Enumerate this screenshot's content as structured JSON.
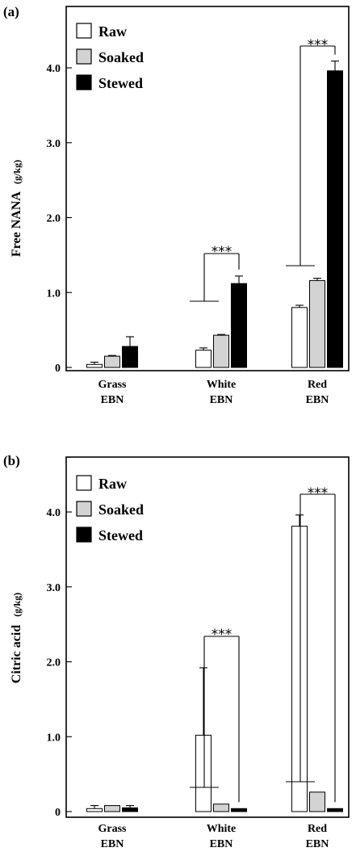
{
  "chart_data": [
    {
      "type": "bar",
      "panel_label": "(a)",
      "ylabel": "Free NANA",
      "ylabel_unit": "(g/kg)",
      "ylim": [
        0,
        4.0
      ],
      "yticks": [
        {
          "value": 0,
          "label": "0"
        },
        {
          "value": 1.0,
          "label": "1.0"
        },
        {
          "value": 2.0,
          "label": "2.0"
        },
        {
          "value": 3.0,
          "label": "3.0"
        },
        {
          "value": 4.0,
          "label": "4.0"
        }
      ],
      "categories": [
        {
          "line1": "Grass",
          "line2": "EBN"
        },
        {
          "line1": "White",
          "line2": "EBN"
        },
        {
          "line1": "Red",
          "line2": "EBN"
        }
      ],
      "series": [
        {
          "name": "Raw",
          "color": "#ffffff",
          "values": [
            0.04,
            0.23,
            0.8
          ],
          "errors": [
            0.03,
            0.03,
            0.03
          ]
        },
        {
          "name": "Soaked",
          "color": "#d3d3d3",
          "values": [
            0.15,
            0.43,
            1.16
          ],
          "errors": [
            0.01,
            0.01,
            0.03
          ]
        },
        {
          "name": "Stewed",
          "color": "#000000",
          "values": [
            0.28,
            1.12,
            3.96
          ],
          "errors": [
            0.13,
            0.1,
            0.13
          ]
        }
      ],
      "legend_position": "top-left",
      "annotations": [
        {
          "category": 1,
          "text": "***"
        },
        {
          "category": 2,
          "text": "***"
        }
      ]
    },
    {
      "type": "bar",
      "panel_label": "(b)",
      "ylabel": "Citric acid",
      "ylabel_unit": "(g/kg)",
      "ylim": [
        0,
        4.0
      ],
      "yticks": [
        {
          "value": 0,
          "label": "0"
        },
        {
          "value": 1.0,
          "label": "1.0"
        },
        {
          "value": 2.0,
          "label": "2.0"
        },
        {
          "value": 3.0,
          "label": "3.0"
        },
        {
          "value": 4.0,
          "label": "4.0"
        }
      ],
      "categories": [
        {
          "line1": "Grass",
          "line2": "EBN"
        },
        {
          "line1": "White",
          "line2": "EBN"
        },
        {
          "line1": "Red",
          "line2": "EBN"
        }
      ],
      "series": [
        {
          "name": "Raw",
          "color": "#ffffff",
          "values": [
            0.04,
            1.02,
            3.81
          ],
          "errors": [
            0.04,
            0.9,
            0.15
          ]
        },
        {
          "name": "Soaked",
          "color": "#d3d3d3",
          "values": [
            0.08,
            0.1,
            0.26
          ],
          "errors": [
            0.0,
            0.0,
            0.0
          ]
        },
        {
          "name": "Stewed",
          "color": "#000000",
          "values": [
            0.05,
            0.04,
            0.04
          ],
          "errors": [
            0.03,
            0.0,
            0.0
          ]
        }
      ],
      "legend_position": "top-left",
      "annotations": [
        {
          "category": 1,
          "text": "***"
        },
        {
          "category": 2,
          "text": "***"
        }
      ]
    }
  ]
}
